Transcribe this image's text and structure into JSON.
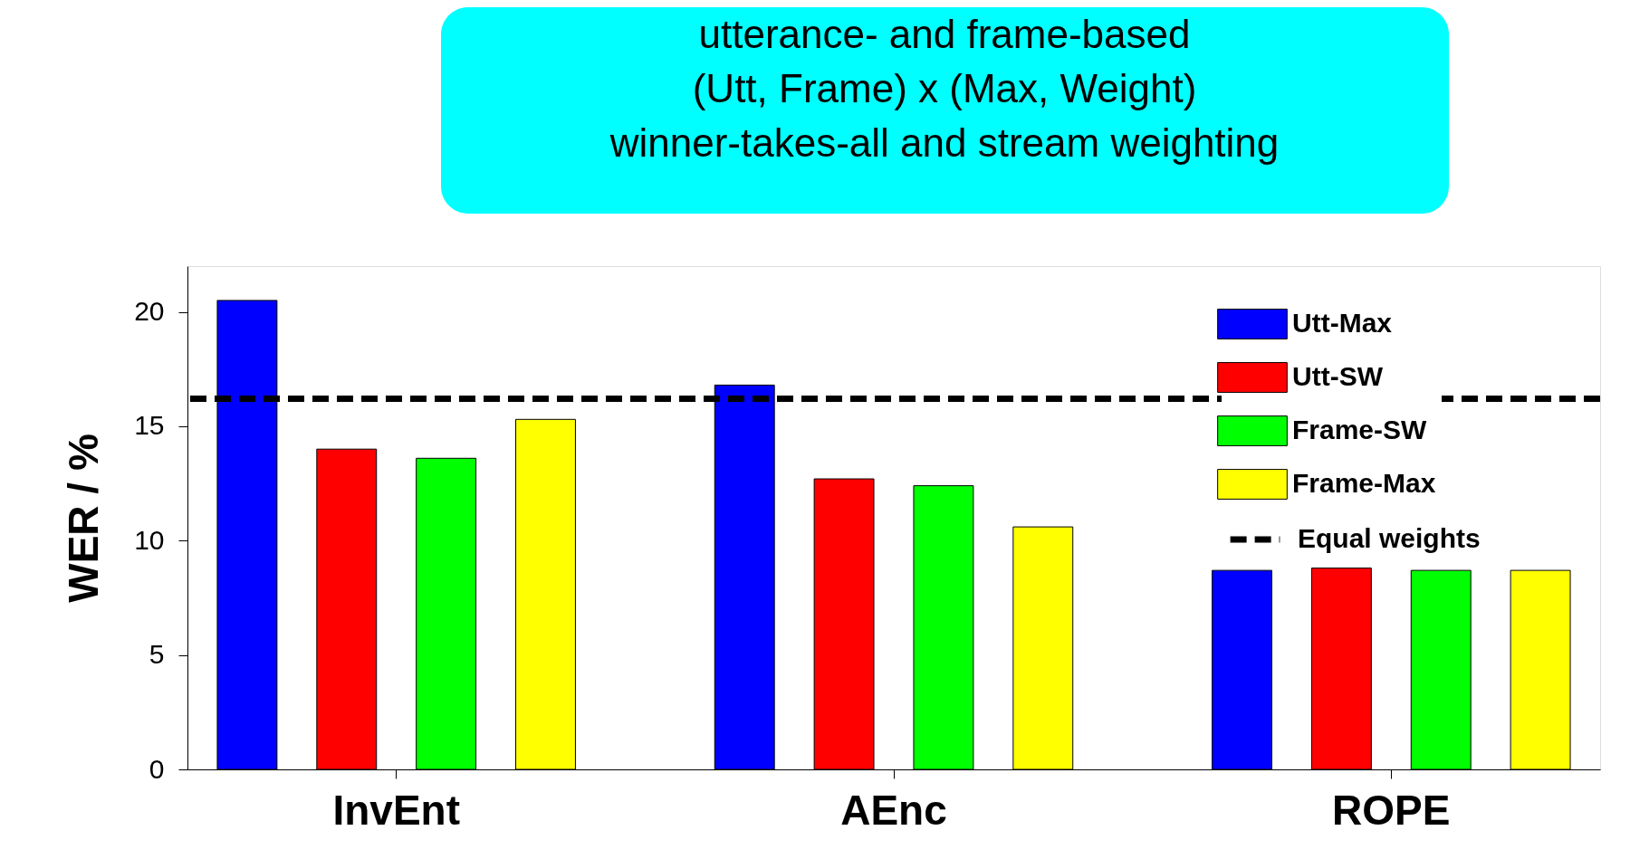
{
  "chart_data": {
    "type": "bar",
    "ylabel": "WER / %",
    "categories": [
      "InvEnt",
      "AEnc",
      "ROPE"
    ],
    "series": [
      {
        "name": "Utt-Max",
        "color": "#0000ff",
        "values": [
          20.5,
          16.8,
          8.7
        ]
      },
      {
        "name": "Utt-SW",
        "color": "#ff0000",
        "values": [
          14.0,
          12.7,
          8.8
        ]
      },
      {
        "name": "Frame-SW",
        "color": "#00ff00",
        "values": [
          13.6,
          12.4,
          8.7
        ]
      },
      {
        "name": "Frame-Max",
        "color": "#ffff00",
        "values": [
          15.3,
          10.6,
          8.7
        ]
      }
    ],
    "ylim": [
      0,
      22
    ],
    "yticks": [
      0,
      5,
      10,
      15,
      20
    ],
    "ref_lines": [
      {
        "axis": "y",
        "value": 16.2,
        "label": "Equal weights",
        "color": "#000000",
        "line_style": "dashed"
      }
    ],
    "legend": "top right",
    "annotations": [
      "utterance- and frame-based\n(Utt, Frame) x (Max, Weight)\nwinner-takes-all and stream weighting"
    ]
  }
}
